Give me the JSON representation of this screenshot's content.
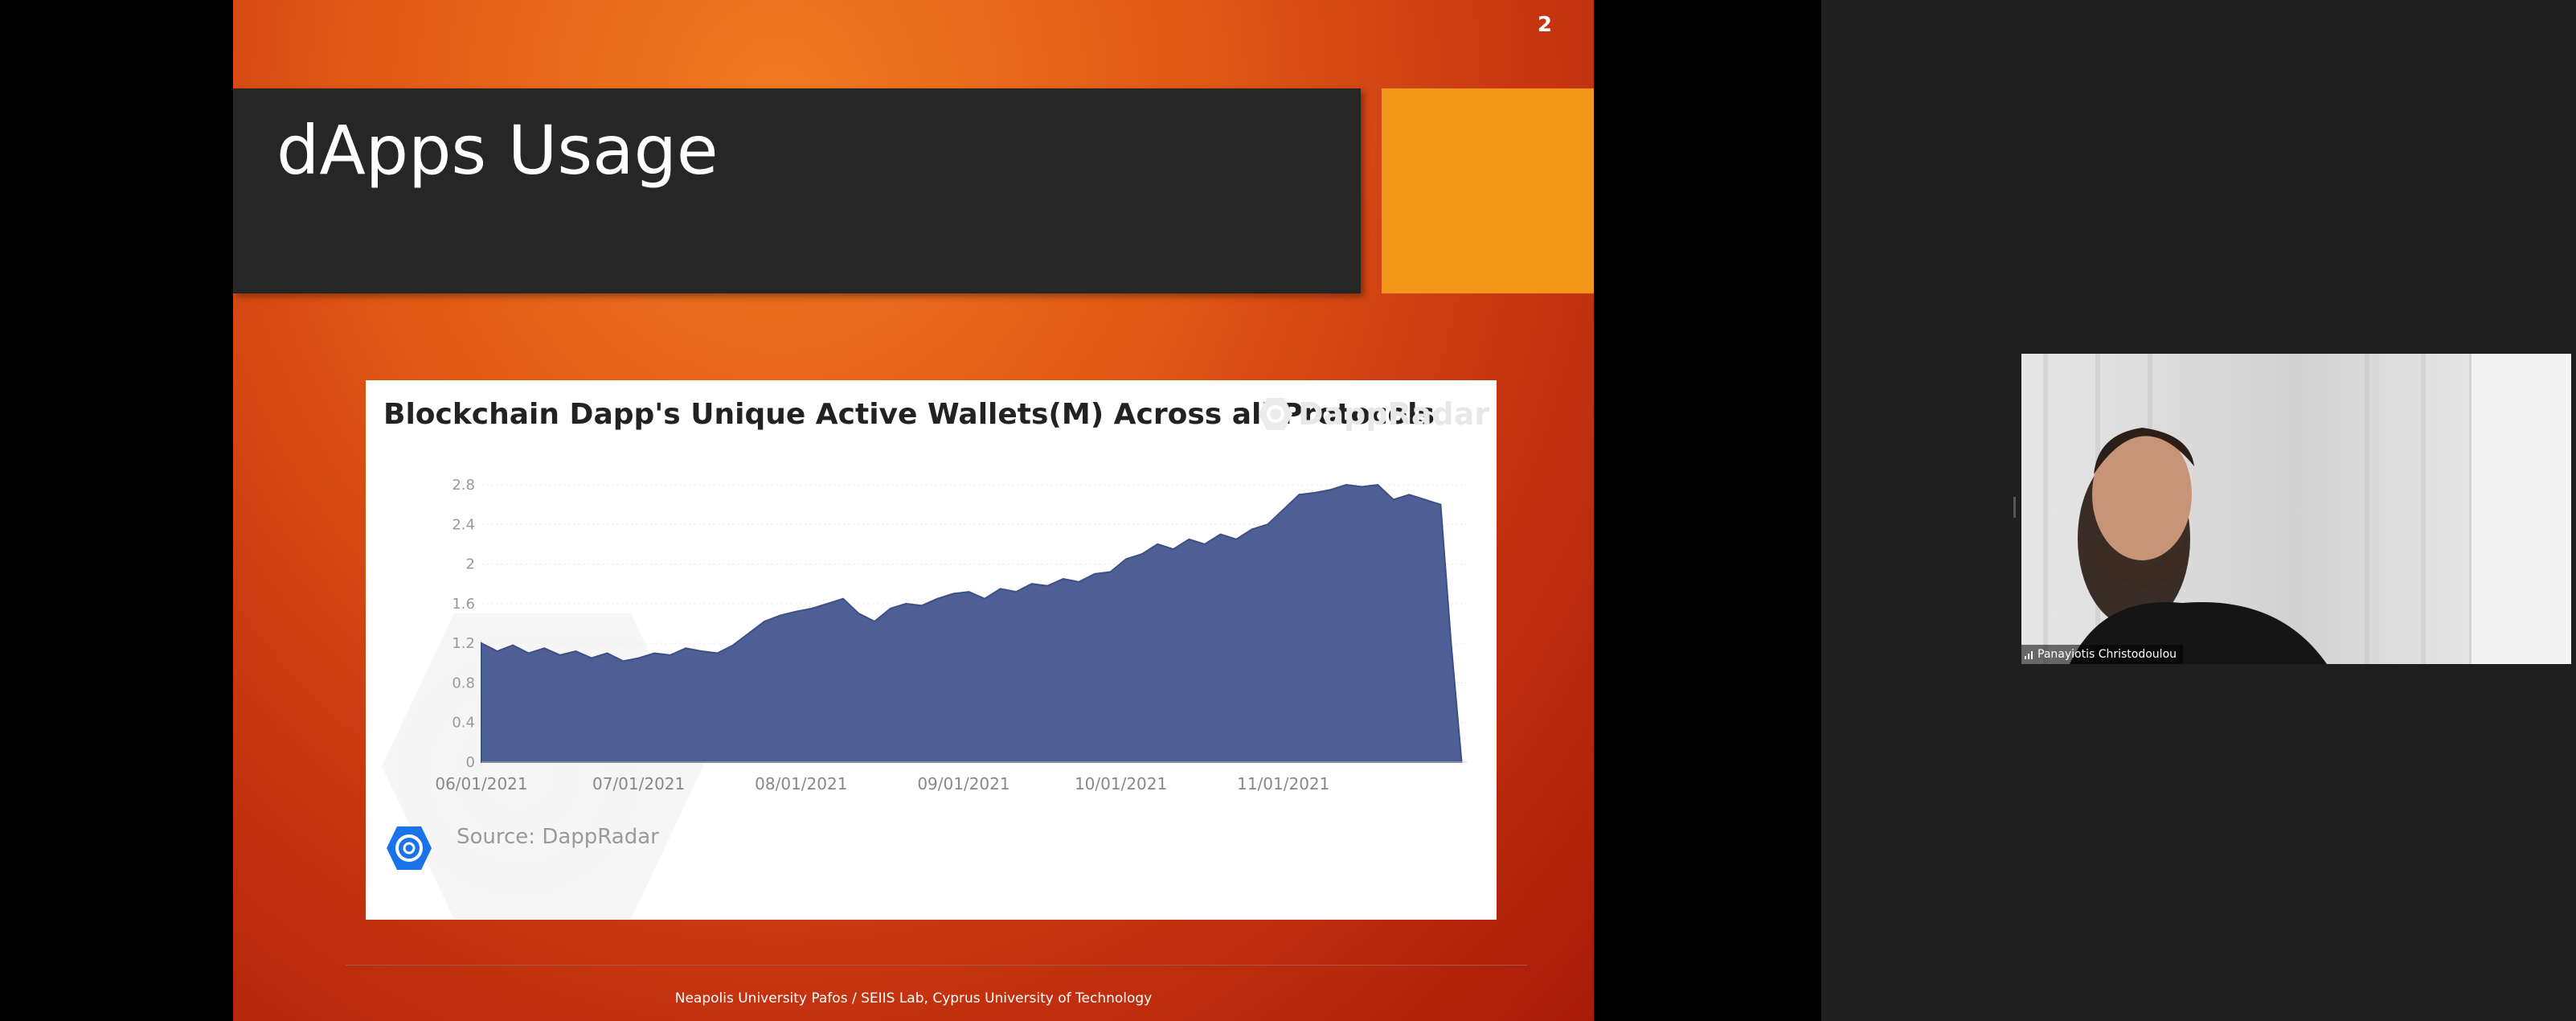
{
  "slide": {
    "number": "2",
    "title": "dApps Usage",
    "footer": "Neapolis University Pafos / SEIIS Lab, Cyprus University of Technology"
  },
  "colors": {
    "title_bar": "#262626",
    "accent": "#f29719",
    "area_fill": "#4d5f95",
    "gradient_light": "#f07a22",
    "gradient_dark": "#a81b08"
  },
  "chart_data": {
    "type": "area",
    "title": "Blockchain Dapp's Unique Active Wallets(M) Across all Protocols",
    "watermark": "DappRadar",
    "source": "Source: DappRadar",
    "x_tick_labels": [
      "06/01/2021",
      "07/01/2021",
      "08/01/2021",
      "09/01/2021",
      "10/01/2021",
      "11/01/2021"
    ],
    "y_tick_labels": [
      "0",
      "0.4",
      "0.8",
      "1.2",
      "1.6",
      "2",
      "2.4",
      "2.8"
    ],
    "ylim": [
      0,
      2.8
    ],
    "x_range": [
      "2021-06-01",
      "2021-12-06"
    ],
    "grid": true,
    "series": [
      {
        "x": [
          "2021-06-01",
          "2021-06-04",
          "2021-06-07",
          "2021-06-10",
          "2021-06-13",
          "2021-06-16",
          "2021-06-19",
          "2021-06-22",
          "2021-06-25",
          "2021-06-28",
          "2021-07-01",
          "2021-07-04",
          "2021-07-07",
          "2021-07-10",
          "2021-07-13",
          "2021-07-16",
          "2021-07-19",
          "2021-07-22",
          "2021-07-25",
          "2021-07-28",
          "2021-07-31",
          "2021-08-03",
          "2021-08-06",
          "2021-08-09",
          "2021-08-12",
          "2021-08-15",
          "2021-08-18",
          "2021-08-21",
          "2021-08-24",
          "2021-08-27",
          "2021-08-30",
          "2021-09-02",
          "2021-09-05",
          "2021-09-08",
          "2021-09-11",
          "2021-09-14",
          "2021-09-17",
          "2021-09-20",
          "2021-09-23",
          "2021-09-26",
          "2021-09-29",
          "2021-10-02",
          "2021-10-05",
          "2021-10-08",
          "2021-10-11",
          "2021-10-14",
          "2021-10-17",
          "2021-10-20",
          "2021-10-23",
          "2021-10-26",
          "2021-10-29",
          "2021-11-01",
          "2021-11-04",
          "2021-11-07",
          "2021-11-10",
          "2021-11-13",
          "2021-11-16",
          "2021-11-19",
          "2021-11-22",
          "2021-11-25",
          "2021-11-28",
          "2021-12-01",
          "2021-12-03",
          "2021-12-05"
        ],
        "y": [
          1.2,
          1.12,
          1.18,
          1.1,
          1.15,
          1.08,
          1.12,
          1.05,
          1.1,
          1.02,
          1.05,
          1.1,
          1.08,
          1.15,
          1.12,
          1.1,
          1.18,
          1.3,
          1.42,
          1.48,
          1.52,
          1.55,
          1.6,
          1.65,
          1.5,
          1.42,
          1.55,
          1.6,
          1.58,
          1.65,
          1.7,
          1.72,
          1.65,
          1.75,
          1.72,
          1.8,
          1.78,
          1.85,
          1.82,
          1.9,
          1.92,
          2.05,
          2.1,
          2.2,
          2.15,
          2.25,
          2.2,
          2.3,
          2.25,
          2.35,
          2.4,
          2.55,
          2.7,
          2.72,
          2.75,
          2.8,
          2.78,
          2.8,
          2.65,
          2.7,
          2.65,
          2.6,
          1.2,
          0
        ]
      }
    ]
  },
  "video": {
    "participant_name": "Panayiotis Christodoulou"
  }
}
